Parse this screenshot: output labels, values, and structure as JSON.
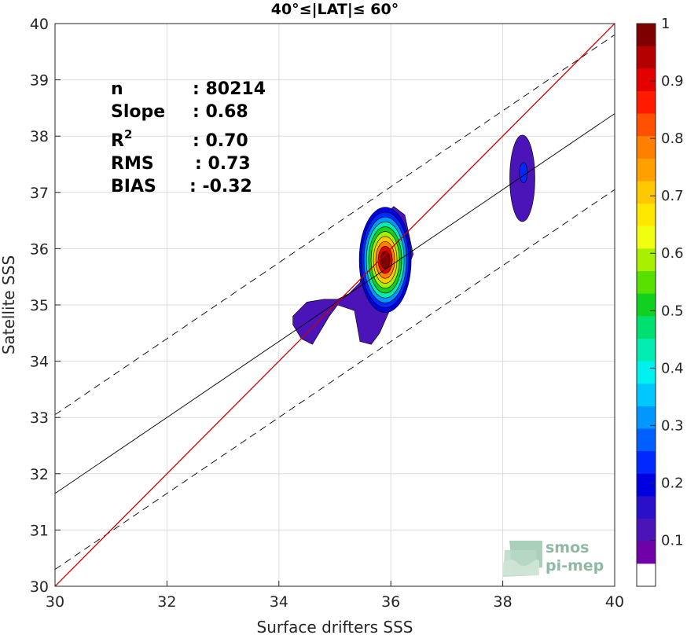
{
  "chart_data": {
    "type": "contour-scatter",
    "title": "40°≤|LAT|≤ 60°",
    "xlabel": "Surface drifters SSS",
    "ylabel": "Satellite SSS",
    "xlim": [
      30,
      40
    ],
    "ylim": [
      30,
      40
    ],
    "xticks": [
      30,
      32,
      34,
      36,
      38,
      40
    ],
    "yticks": [
      30,
      31,
      32,
      33,
      34,
      35,
      36,
      37,
      38,
      39,
      40
    ],
    "grid": true,
    "stats": {
      "n": {
        "label": "n",
        "value": ": 80214"
      },
      "slope": {
        "label": "Slope",
        "value": ": 0.68"
      },
      "r2": {
        "label": "R",
        "sup": "2",
        "value": ": 0.70"
      },
      "rms": {
        "label": "RMS",
        "value": ": 0.73"
      },
      "bias": {
        "label": "BIAS",
        "value": ": -0.32"
      }
    },
    "lines": {
      "identity": {
        "x": [
          30,
          40
        ],
        "y": [
          30,
          40
        ],
        "color": "#cc0000"
      },
      "regression": {
        "x": [
          30,
          40
        ],
        "y": [
          31.65,
          38.4
        ],
        "color": "#000000"
      },
      "upper_bound": {
        "x": [
          30,
          40
        ],
        "y": [
          33.05,
          39.8
        ],
        "color": "#000000",
        "dashed": true
      },
      "lower_bound": {
        "x": [
          30,
          40
        ],
        "y": [
          30.3,
          37.05
        ],
        "color": "#000000",
        "dashed": true
      }
    },
    "density_peaks": [
      {
        "x": 35.9,
        "y": 35.8,
        "max_density": 1.0
      },
      {
        "x": 34.9,
        "y": 34.75,
        "max_density": 0.15
      },
      {
        "x": 38.35,
        "y": 37.25,
        "max_density": 0.2
      }
    ],
    "colorbar": {
      "ticks": [
        "1",
        "0.9",
        "0.8",
        "0.7",
        "0.6",
        "0.5",
        "0.4",
        "0.3",
        "0.2",
        "0.1"
      ],
      "tick_values": [
        1,
        0.9,
        0.8,
        0.7,
        0.6,
        0.5,
        0.4,
        0.3,
        0.2,
        0.1
      ],
      "colors": [
        "#7f0000",
        "#b40000",
        "#e50000",
        "#ff1a00",
        "#ff5000",
        "#ff8000",
        "#ffa000",
        "#ffc800",
        "#ffe800",
        "#f0ff10",
        "#a8f000",
        "#58e000",
        "#10d020",
        "#00e070",
        "#00ecb0",
        "#00f0f0",
        "#00c8ff",
        "#0098ff",
        "#0060ff",
        "#0028ff",
        "#0000e0",
        "#2a10c8",
        "#4a14b8",
        "#7000a8",
        "#ffffff"
      ]
    }
  },
  "logo": {
    "line1": "smos",
    "line2": "pi-mep"
  }
}
